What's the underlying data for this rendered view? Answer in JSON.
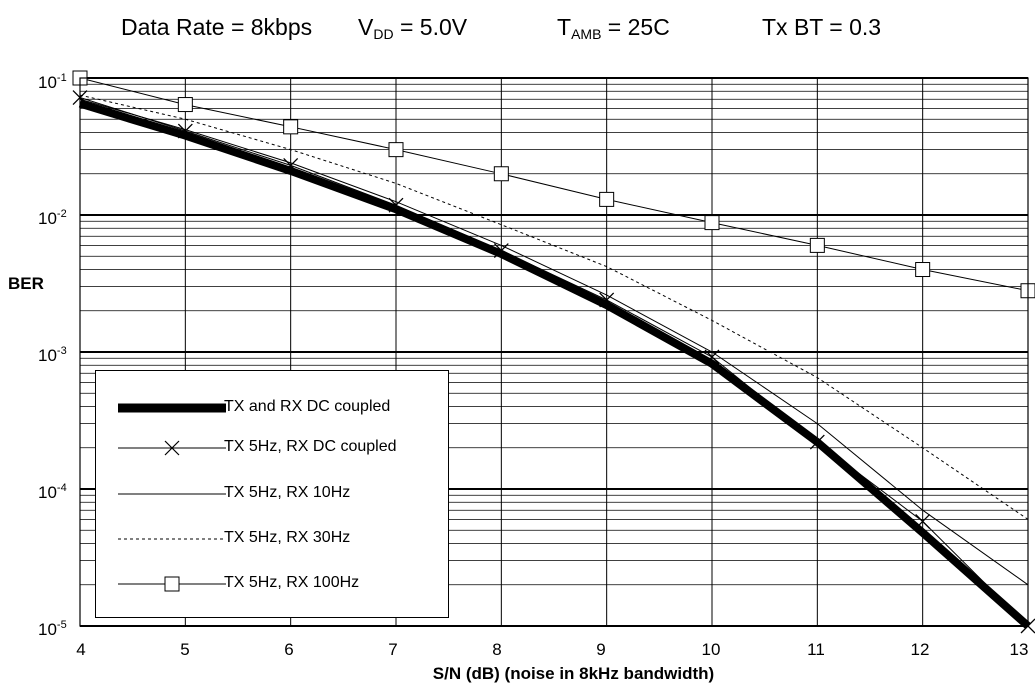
{
  "title_parts": [
    {
      "text": "Data Rate = 8kbps"
    },
    {
      "text": "V",
      "sub": "DD",
      "after": " = 5.0V"
    },
    {
      "text": "T",
      "sub": "AMB",
      "after": " = 25C"
    },
    {
      "text": "Tx BT = 0.3"
    }
  ],
  "chart_data": {
    "type": "line",
    "xlabel": "S/N (dB) (noise in 8kHz bandwidth)",
    "ylabel": "BER",
    "xlim": [
      4,
      13
    ],
    "ylim": [
      1e-05,
      0.1
    ],
    "yscale": "log",
    "grid": true,
    "legend_position": "bottom-left",
    "x_ticks": [
      "4",
      "5",
      "6",
      "7",
      "8",
      "9",
      "10",
      "11",
      "12",
      "13"
    ],
    "y_ticks": [
      {
        "base": "10",
        "exp": "-1"
      },
      {
        "base": "10",
        "exp": "-2"
      },
      {
        "base": "10",
        "exp": "-3"
      },
      {
        "base": "10",
        "exp": "-4"
      },
      {
        "base": "10",
        "exp": "-5"
      }
    ],
    "series": [
      {
        "name": "TX and RX DC coupled",
        "style": "thick",
        "marker": "none",
        "x": [
          4,
          5,
          6,
          7,
          8,
          9,
          10,
          11,
          12,
          13
        ],
        "y": [
          0.065,
          0.038,
          0.021,
          0.011,
          0.0052,
          0.0022,
          0.00082,
          0.00022,
          4.8e-05,
          1e-05
        ]
      },
      {
        "name": "TX 5Hz, RX DC coupled",
        "style": "thin",
        "marker": "x",
        "x": [
          4,
          5,
          6,
          7,
          8,
          9,
          10,
          11,
          12,
          13
        ],
        "y": [
          0.072,
          0.041,
          0.023,
          0.0118,
          0.0055,
          0.0024,
          0.00092,
          0.00022,
          5.8e-05,
          1e-05
        ]
      },
      {
        "name": "TX 5Hz, RX 10Hz",
        "style": "thin",
        "marker": "none",
        "x": [
          4,
          5,
          6,
          7,
          8,
          9,
          10,
          11,
          12,
          13
        ],
        "y": [
          0.07,
          0.042,
          0.024,
          0.0125,
          0.006,
          0.0026,
          0.001,
          0.0003,
          7e-05,
          2e-05
        ]
      },
      {
        "name": "TX 5Hz, RX 30Hz",
        "style": "dashed",
        "marker": "none",
        "x": [
          4,
          5,
          6,
          7,
          8,
          9,
          10,
          11,
          12,
          13
        ],
        "y": [
          0.075,
          0.05,
          0.03,
          0.017,
          0.0085,
          0.0042,
          0.0017,
          0.00065,
          0.0002,
          6e-05
        ]
      },
      {
        "name": "TX 5Hz, RX 100Hz",
        "style": "thin",
        "marker": "square",
        "x": [
          4,
          5,
          6,
          7,
          8,
          9,
          10,
          11,
          12,
          13
        ],
        "y": [
          0.1,
          0.064,
          0.044,
          0.03,
          0.02,
          0.013,
          0.0088,
          0.006,
          0.004,
          0.0028
        ]
      }
    ]
  }
}
